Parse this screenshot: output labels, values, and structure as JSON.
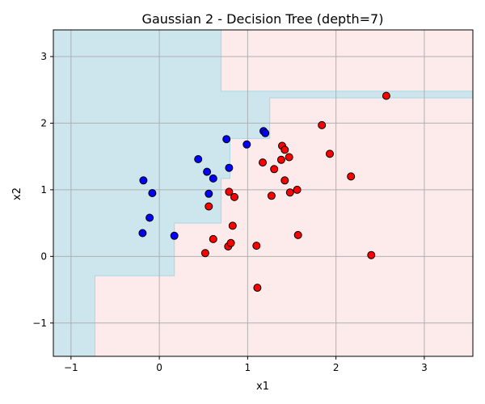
{
  "chart_data": {
    "type": "scatter",
    "title": "Gaussian 2 - Decision Tree (depth=7)",
    "xlabel": "x1",
    "ylabel": "x2",
    "xlim": [
      -1.2,
      3.55
    ],
    "ylim": [
      -1.5,
      3.4
    ],
    "xticks": [
      -1,
      0,
      1,
      2,
      3
    ],
    "yticks": [
      -1,
      0,
      1,
      2,
      3
    ],
    "xtick_labels": [
      "−1",
      "0",
      "1",
      "2",
      "3"
    ],
    "ytick_labels": [
      "−1",
      "0",
      "1",
      "2",
      "3"
    ],
    "grid": true,
    "colors": {
      "blue_region": "#cde6ee",
      "red_region": "#fdeaea",
      "boundary": "#a8d8e6",
      "blue_point": "#0000ff",
      "red_point": "#ff0000",
      "point_edge": "#000000",
      "grid": "#b0b0b0"
    },
    "blue_region_boundary": [
      [
        -1.2,
        3.4
      ],
      [
        0.7,
        3.4
      ],
      [
        0.7,
        2.48
      ],
      [
        3.55,
        2.48
      ],
      [
        3.55,
        2.38
      ],
      [
        1.25,
        2.38
      ],
      [
        1.25,
        1.77
      ],
      [
        0.8,
        1.77
      ],
      [
        0.8,
        1.17
      ],
      [
        0.7,
        1.17
      ],
      [
        0.7,
        0.5
      ],
      [
        0.17,
        0.5
      ],
      [
        0.17,
        -0.29
      ],
      [
        -0.73,
        -0.29
      ],
      [
        -0.73,
        -1.5
      ],
      [
        -1.2,
        -1.5
      ]
    ],
    "series": [
      {
        "class": "blue",
        "points": [
          [
            -0.18,
            1.14
          ],
          [
            -0.08,
            0.95
          ],
          [
            -0.11,
            0.58
          ],
          [
            -0.19,
            0.35
          ],
          [
            0.17,
            0.31
          ],
          [
            0.44,
            1.46
          ],
          [
            0.54,
            1.27
          ],
          [
            0.56,
            0.94
          ],
          [
            0.61,
            1.17
          ],
          [
            0.76,
            1.76
          ],
          [
            0.79,
            1.33
          ],
          [
            0.99,
            1.68
          ],
          [
            1.18,
            1.88
          ],
          [
            1.2,
            1.85
          ]
        ]
      },
      {
        "class": "red",
        "points": [
          [
            0.52,
            0.05
          ],
          [
            0.56,
            0.75
          ],
          [
            0.61,
            0.26
          ],
          [
            0.79,
            0.97
          ],
          [
            0.78,
            0.15
          ],
          [
            0.81,
            0.2
          ],
          [
            0.83,
            0.46
          ],
          [
            0.85,
            0.89
          ],
          [
            1.1,
            0.16
          ],
          [
            1.11,
            -0.47
          ],
          [
            1.17,
            1.41
          ],
          [
            1.27,
            0.91
          ],
          [
            1.3,
            1.31
          ],
          [
            1.38,
            1.45
          ],
          [
            1.39,
            1.66
          ],
          [
            1.42,
            1.6
          ],
          [
            1.42,
            1.14
          ],
          [
            1.47,
            1.49
          ],
          [
            1.48,
            0.96
          ],
          [
            1.56,
            1.0
          ],
          [
            1.57,
            0.32
          ],
          [
            1.84,
            1.97
          ],
          [
            1.93,
            1.54
          ],
          [
            2.17,
            1.2
          ],
          [
            2.4,
            0.02
          ],
          [
            2.57,
            2.41
          ]
        ]
      }
    ]
  }
}
